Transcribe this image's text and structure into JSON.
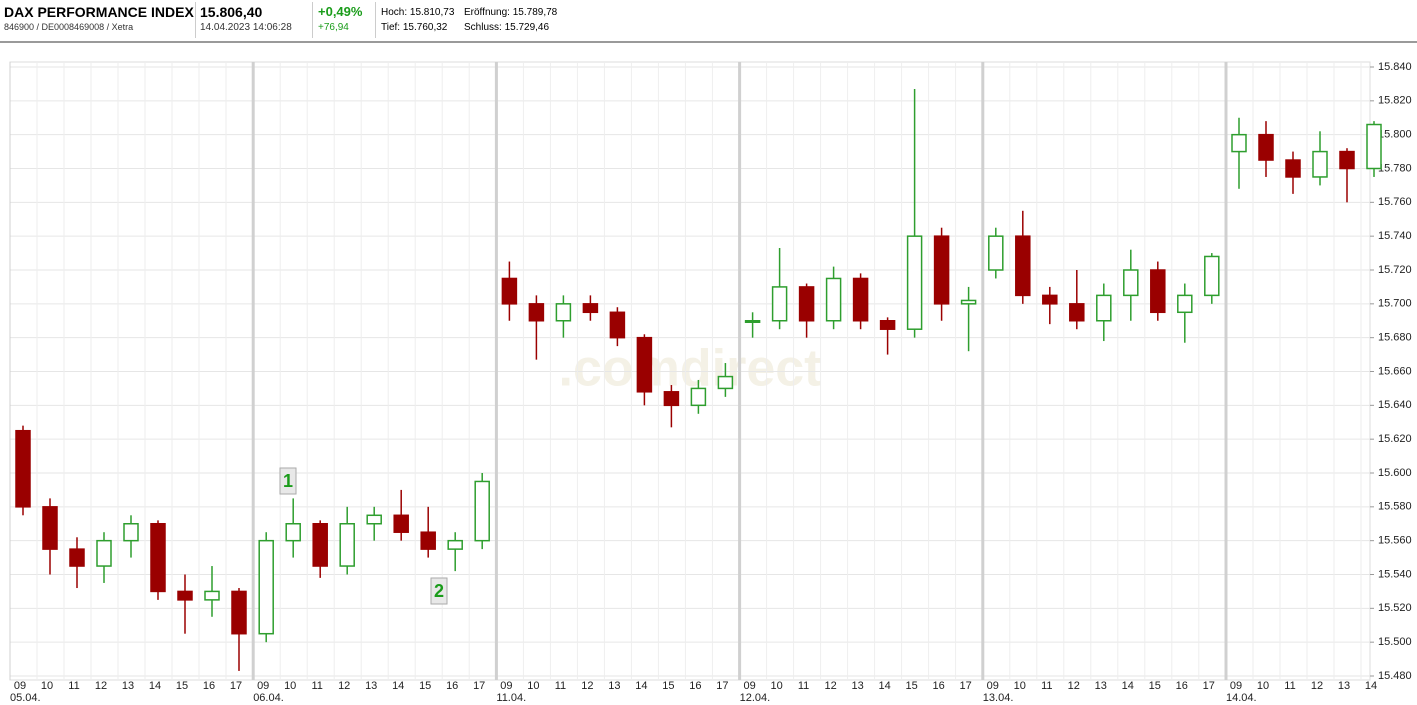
{
  "header": {
    "name": "DAX PERFORMANCE INDEX",
    "ids": "846900 / DE0008469008 / Xetra",
    "price": "15.806,40",
    "timestamp": "14.04.2023 14:06:28",
    "change_pct": "+0,49%",
    "change_abs": "+76,94",
    "high": "Hoch: 15.810,73",
    "low": "Tief: 15.760,32",
    "open": "Eröffnung: 15.789,78",
    "close": "Schluss: 15.729,46"
  },
  "chart_data": {
    "type": "candlestick",
    "watermark": ".comdirect",
    "categories": [
      "09",
      "10",
      "11",
      "12",
      "13",
      "14",
      "15",
      "16",
      "17",
      "09",
      "10",
      "11",
      "12",
      "13",
      "14",
      "15",
      "16",
      "17",
      "09",
      "10",
      "11",
      "12",
      "13",
      "14",
      "15",
      "16",
      "17",
      "09",
      "10",
      "11",
      "12",
      "13",
      "14",
      "15",
      "16",
      "17",
      "09",
      "10",
      "11",
      "12",
      "13",
      "14",
      "15",
      "16",
      "17",
      "09",
      "10",
      "11",
      "12",
      "13",
      "14"
    ],
    "day_labels": [
      "05.04.",
      null,
      null,
      null,
      null,
      null,
      null,
      null,
      null,
      "06.04.",
      null,
      null,
      null,
      null,
      null,
      null,
      null,
      null,
      "11.04.",
      null,
      null,
      null,
      null,
      null,
      null,
      null,
      null,
      "12.04.",
      null,
      null,
      null,
      null,
      null,
      null,
      null,
      null,
      "13.04.",
      null,
      null,
      null,
      null,
      null,
      null,
      null,
      null,
      "14.04.",
      null,
      null,
      null,
      null,
      null
    ],
    "open": [
      15.625,
      15.58,
      15.555,
      15.545,
      15.56,
      15.57,
      15.53,
      15.525,
      15.53,
      15.505,
      15.56,
      15.57,
      15.545,
      15.57,
      15.575,
      15.565,
      15.555,
      15.56,
      15.715,
      15.7,
      15.69,
      15.7,
      15.695,
      15.68,
      15.648,
      15.64,
      15.65,
      15.69,
      15.69,
      15.71,
      15.69,
      15.715,
      15.69,
      15.685,
      15.74,
      15.7,
      15.72,
      15.74,
      15.705,
      15.7,
      15.69,
      15.705,
      15.72,
      15.695,
      15.705,
      15.79,
      15.8,
      15.785,
      15.775,
      15.79,
      15.78
    ],
    "high": [
      15.628,
      15.585,
      15.562,
      15.565,
      15.575,
      15.572,
      15.54,
      15.545,
      15.532,
      15.565,
      15.585,
      15.572,
      15.58,
      15.58,
      15.59,
      15.58,
      15.565,
      15.6,
      15.725,
      15.705,
      15.705,
      15.705,
      15.698,
      15.682,
      15.652,
      15.655,
      15.665,
      15.695,
      15.733,
      15.712,
      15.722,
      15.718,
      15.692,
      15.827,
      15.745,
      15.71,
      15.745,
      15.755,
      15.71,
      15.72,
      15.712,
      15.732,
      15.725,
      15.712,
      15.73,
      15.81,
      15.808,
      15.79,
      15.802,
      15.792,
      15.808
    ],
    "low": [
      15.575,
      15.54,
      15.532,
      15.535,
      15.55,
      15.525,
      15.505,
      15.515,
      15.483,
      15.5,
      15.55,
      15.538,
      15.54,
      15.56,
      15.56,
      15.55,
      15.542,
      15.555,
      15.69,
      15.667,
      15.68,
      15.69,
      15.675,
      15.64,
      15.627,
      15.635,
      15.645,
      15.68,
      15.685,
      15.68,
      15.685,
      15.685,
      15.67,
      15.68,
      15.69,
      15.672,
      15.715,
      15.7,
      15.688,
      15.685,
      15.678,
      15.69,
      15.69,
      15.677,
      15.7,
      15.768,
      15.775,
      15.765,
      15.77,
      15.76,
      15.775
    ],
    "close": [
      15.58,
      15.555,
      15.545,
      15.56,
      15.57,
      15.53,
      15.525,
      15.53,
      15.505,
      15.56,
      15.57,
      15.545,
      15.57,
      15.575,
      15.565,
      15.555,
      15.56,
      15.595,
      15.7,
      15.69,
      15.7,
      15.695,
      15.68,
      15.648,
      15.64,
      15.65,
      15.657,
      15.69,
      15.71,
      15.69,
      15.715,
      15.69,
      15.685,
      15.74,
      15.7,
      15.702,
      15.74,
      15.705,
      15.7,
      15.69,
      15.705,
      15.72,
      15.695,
      15.705,
      15.728,
      15.8,
      15.785,
      15.775,
      15.79,
      15.78,
      15.806
    ],
    "up_color": "#2e9e2e",
    "down_color": "#9a0000",
    "annotations": [
      "1",
      "2"
    ],
    "ylim": [
      15.48,
      15.84
    ],
    "yticks": [
      {
        "value": 15.48,
        "label": "15.480"
      },
      {
        "value": 15.5,
        "label": "15.500"
      },
      {
        "value": 15.52,
        "label": "15.520"
      },
      {
        "value": 15.54,
        "label": "15.540"
      },
      {
        "value": 15.56,
        "label": "15.560"
      },
      {
        "value": 15.58,
        "label": "15.580"
      },
      {
        "value": 15.6,
        "label": "15.600"
      },
      {
        "value": 15.62,
        "label": "15.620"
      },
      {
        "value": 15.64,
        "label": "15.640"
      },
      {
        "value": 15.66,
        "label": "15.660"
      },
      {
        "value": 15.68,
        "label": "15.680"
      },
      {
        "value": 15.7,
        "label": "15.700"
      },
      {
        "value": 15.72,
        "label": "15.720"
      },
      {
        "value": 15.74,
        "label": "15.740"
      },
      {
        "value": 15.76,
        "label": "15.760"
      },
      {
        "value": 15.78,
        "label": "15.780"
      },
      {
        "value": 15.8,
        "label": "15.800"
      },
      {
        "value": 15.82,
        "label": "15.820"
      },
      {
        "value": 15.84,
        "label": "15.840"
      }
    ],
    "grid": true
  }
}
